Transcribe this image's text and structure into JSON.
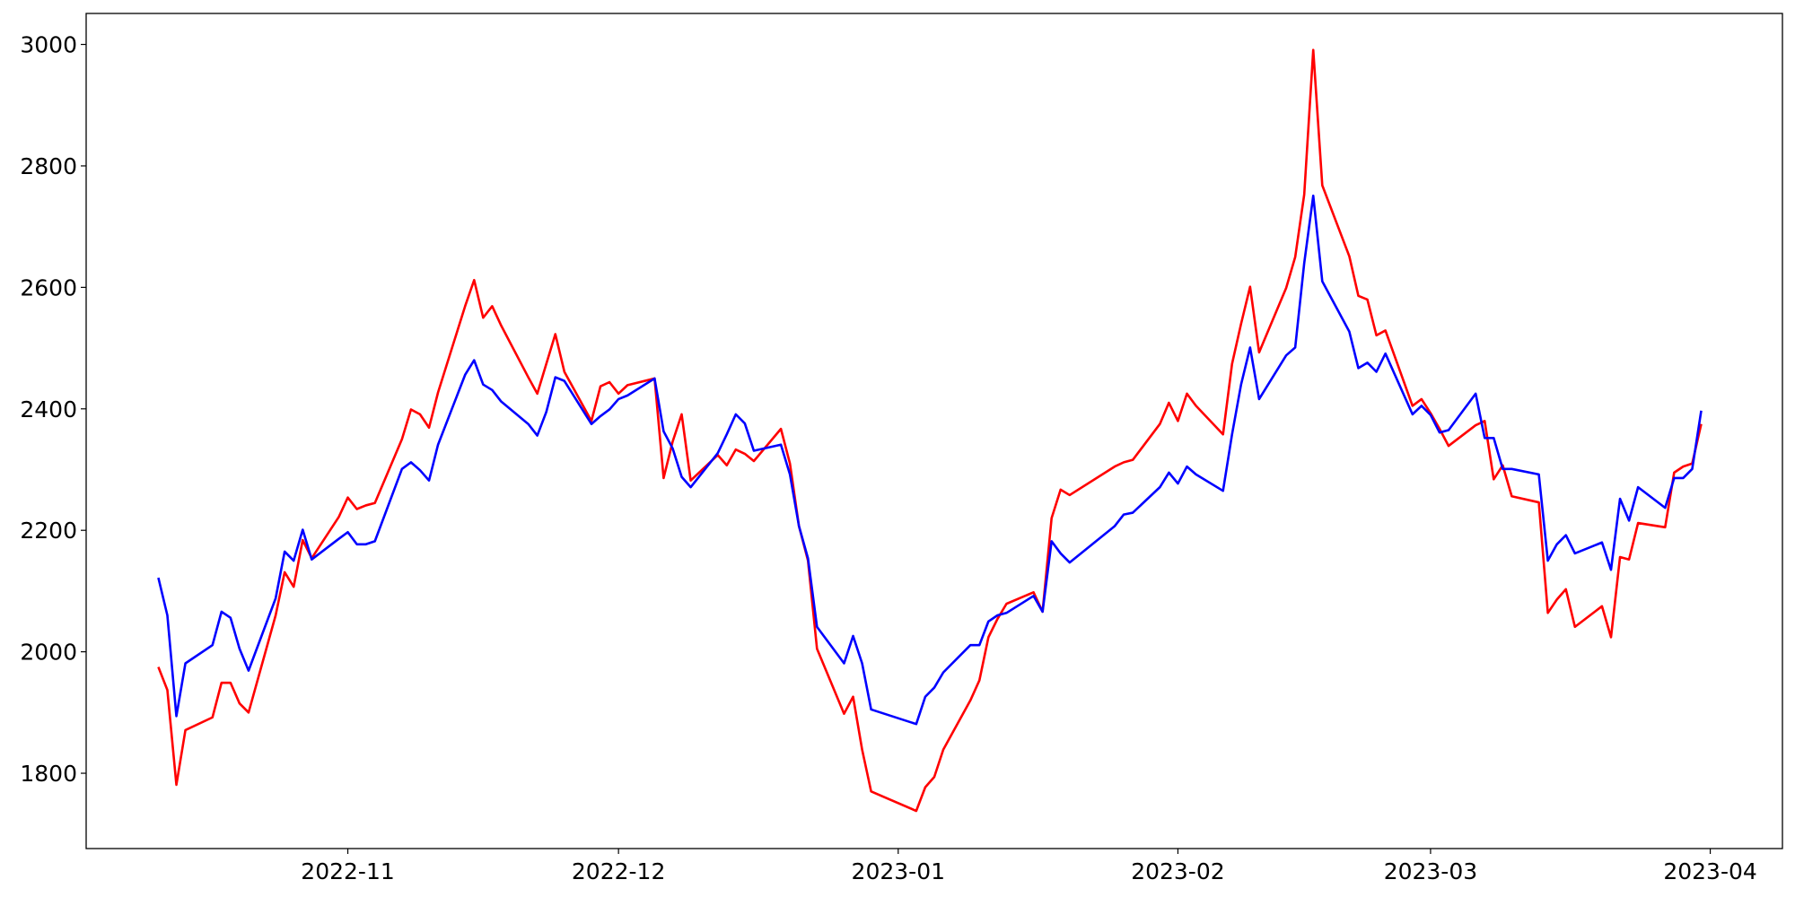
{
  "chart_data": {
    "type": "line",
    "x": [
      "2022-10-11",
      "2022-10-12",
      "2022-10-13",
      "2022-10-14",
      "2022-10-17",
      "2022-10-18",
      "2022-10-19",
      "2022-10-20",
      "2022-10-21",
      "2022-10-24",
      "2022-10-25",
      "2022-10-26",
      "2022-10-27",
      "2022-10-28",
      "2022-10-31",
      "2022-11-01",
      "2022-11-02",
      "2022-11-03",
      "2022-11-04",
      "2022-11-07",
      "2022-11-08",
      "2022-11-09",
      "2022-11-10",
      "2022-11-11",
      "2022-11-14",
      "2022-11-15",
      "2022-11-16",
      "2022-11-17",
      "2022-11-18",
      "2022-11-21",
      "2022-11-22",
      "2022-11-23",
      "2022-11-24",
      "2022-11-25",
      "2022-11-28",
      "2022-11-29",
      "2022-11-30",
      "2022-12-01",
      "2022-12-02",
      "2022-12-05",
      "2022-12-06",
      "2022-12-07",
      "2022-12-08",
      "2022-12-09",
      "2022-12-12",
      "2022-12-13",
      "2022-12-14",
      "2022-12-15",
      "2022-12-16",
      "2022-12-19",
      "2022-12-20",
      "2022-12-21",
      "2022-12-22",
      "2022-12-23",
      "2022-12-26",
      "2022-12-27",
      "2022-12-28",
      "2022-12-29",
      "2023-01-03",
      "2023-01-04",
      "2023-01-05",
      "2023-01-06",
      "2023-01-09",
      "2023-01-10",
      "2023-01-11",
      "2023-01-12",
      "2023-01-13",
      "2023-01-16",
      "2023-01-17",
      "2023-01-18",
      "2023-01-19",
      "2023-01-20",
      "2023-01-25",
      "2023-01-26",
      "2023-01-27",
      "2023-01-30",
      "2023-01-31",
      "2023-02-01",
      "2023-02-02",
      "2023-02-03",
      "2023-02-06",
      "2023-02-07",
      "2023-02-08",
      "2023-02-09",
      "2023-02-10",
      "2023-02-13",
      "2023-02-14",
      "2023-02-15",
      "2023-02-16",
      "2023-02-17",
      "2023-02-20",
      "2023-02-21",
      "2023-02-22",
      "2023-02-23",
      "2023-02-24",
      "2023-02-27",
      "2023-02-28",
      "2023-03-01",
      "2023-03-02",
      "2023-03-03",
      "2023-03-06",
      "2023-03-07",
      "2023-03-08",
      "2023-03-09",
      "2023-03-10",
      "2023-03-13",
      "2023-03-14",
      "2023-03-15",
      "2023-03-16",
      "2023-03-17",
      "2023-03-20",
      "2023-03-21",
      "2023-03-22",
      "2023-03-23",
      "2023-03-24",
      "2023-03-27",
      "2023-03-28",
      "2023-03-29",
      "2023-03-30",
      "2023-03-31"
    ],
    "series": [
      {
        "color": "#ff0000",
        "values": [
          1975,
          1937,
          1781,
          1871,
          1892,
          1949,
          1949,
          1915,
          1900,
          2060,
          2131,
          2107,
          2184,
          2154,
          2222,
          2254,
          2235,
          2241,
          2245,
          2350,
          2399,
          2391,
          2369,
          2427,
          2569,
          2612,
          2550,
          2569,
          2537,
          2452,
          2425,
          2474,
          2523,
          2461,
          2380,
          2437,
          2444,
          2425,
          2439,
          2450,
          2286,
          2346,
          2391,
          2282,
          2324,
          2307,
          2333,
          2326,
          2314,
          2367,
          2310,
          2207,
          2150,
          2005,
          1898,
          1926,
          1839,
          1770,
          1738,
          1777,
          1794,
          1839,
          1920,
          1953,
          2024,
          2054,
          2079,
          2098,
          2066,
          2220,
          2267,
          2258,
          2305,
          2312,
          2316,
          2375,
          2410,
          2380,
          2425,
          2405,
          2358,
          2474,
          2540,
          2601,
          2493,
          2599,
          2650,
          2753,
          2991,
          2768,
          2651,
          2586,
          2580,
          2521,
          2529,
          2405,
          2416,
          2393,
          2367,
          2339,
          2373,
          2380,
          2284,
          2307,
          2256,
          2246,
          2064,
          2086,
          2103,
          2041,
          2075,
          2024,
          2156,
          2152,
          2212,
          2205,
          2295,
          2305,
          2310,
          2375
        ]
      },
      {
        "color": "#0000ff",
        "values": [
          2122,
          2060,
          1894,
          1981,
          2011,
          2066,
          2056,
          2005,
          1969,
          2088,
          2165,
          2150,
          2201,
          2152,
          2186,
          2197,
          2177,
          2177,
          2182,
          2301,
          2312,
          2299,
          2282,
          2341,
          2456,
          2480,
          2440,
          2431,
          2412,
          2375,
          2356,
          2395,
          2452,
          2446,
          2375,
          2388,
          2399,
          2416,
          2422,
          2450,
          2363,
          2335,
          2288,
          2271,
          2327,
          2358,
          2391,
          2376,
          2331,
          2341,
          2292,
          2207,
          2154,
          2041,
          1981,
          2026,
          1981,
          1905,
          1881,
          1926,
          1941,
          1966,
          2011,
          2011,
          2050,
          2060,
          2064,
          2092,
          2066,
          2182,
          2162,
          2147,
          2207,
          2226,
          2229,
          2271,
          2295,
          2277,
          2305,
          2292,
          2265,
          2358,
          2440,
          2501,
          2416,
          2488,
          2501,
          2640,
          2751,
          2610,
          2527,
          2467,
          2476,
          2461,
          2491,
          2391,
          2405,
          2390,
          2361,
          2365,
          2425,
          2352,
          2352,
          2301,
          2301,
          2292,
          2150,
          2177,
          2192,
          2162,
          2180,
          2135,
          2252,
          2216,
          2271,
          2237,
          2286,
          2286,
          2301,
          2397
        ]
      }
    ],
    "xlim": [
      "2022-10-03",
      "2023-04-09"
    ],
    "xticks": [
      "2022-11",
      "2022-12",
      "2023-01",
      "2023-02",
      "2023-03",
      "2023-04"
    ],
    "ylim": [
      1676,
      3051
    ],
    "yticks": [
      1800,
      2000,
      2200,
      2400,
      2600,
      2800,
      3000
    ],
    "grid": false
  }
}
